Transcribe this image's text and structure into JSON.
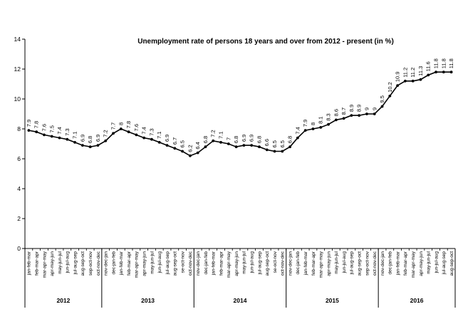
{
  "chart_data": {
    "type": "line",
    "title": "Unemployment rate of persons 18 years and over from 2012 - present (in %)",
    "xlabel": "",
    "ylabel": "",
    "ylim": [
      0,
      14
    ],
    "yticks": [
      0,
      2,
      4,
      6,
      8,
      10,
      12,
      14
    ],
    "grid": false,
    "legend": "none",
    "line_color": "#000000",
    "categories": [
      "jan-feb-mar",
      "feb-mar-apr",
      "mar-apr-may",
      "apr-may-jun",
      "may-jun-jul",
      "jun-jul-aug",
      "jul-aug-sep",
      "aug-sep-oct",
      "sep-oct-nov",
      "oct-nov-dec",
      "nov-dec-jan",
      "dec-jan-feb",
      "jan-feb-mar",
      "feb-mar-apr",
      "mar-apr-may",
      "apr-may-jun",
      "may-jun-jul",
      "jun-jul-aug",
      "jul-aug-sep",
      "aug-sep-oct",
      "se-oct-nov",
      "oct-nov-dec",
      "nov-dec-jan",
      "dec-jan-feb",
      "jan-feb-mar",
      "feb-mar-apr",
      "mar-apr-may",
      "apr-may-jun",
      "may-jun-jul",
      "jun-jul-aug",
      "jul-aug-sep",
      "aug-sep-oct",
      "se-oct-nov",
      "oct-nov-dec",
      "nov-dec-jan",
      "dec-jan-feb",
      "jan-feb-mar",
      "feb-mar-apr",
      "mar-apr-may",
      "apr-may-jun",
      "may-jun-jul",
      "jun-jul-aug",
      "jul-aug-sep",
      "aug-sep-oct",
      "sep-oct-nov",
      "oct-nov-dec",
      "nov-dec-jan",
      "dec-jan-feb",
      "jan-feb-mar",
      "feb-mar-apr",
      "mar-apr-may",
      "apr-may-jun",
      "may-jun-jul",
      "jun-jul-aug",
      "jul-aug-sep",
      "aug-sep-oct"
    ],
    "labels": [
      "7.9",
      "7.8",
      "7.6",
      "7.5",
      "7.4",
      "7.3",
      "7.1",
      "6.9",
      "6.8",
      "6.9",
      "7.2",
      "7.7",
      "8",
      "7.8",
      "7.6",
      "7.4",
      "7.3",
      "7.1",
      "6.9",
      "6.7",
      "6.5",
      "6.2",
      "6.4",
      "6.8",
      "7.2",
      "7.1",
      "7",
      "6.8",
      "6.9",
      "6.9",
      "6.8",
      "6.6",
      "6.5",
      "6.5",
      "6.8",
      "7.4",
      "7.9",
      "8",
      "8.1",
      "8.3",
      "8.6",
      "8.7",
      "8.9",
      "8.9",
      "9",
      "9",
      "9.5",
      "10.2",
      "10.9",
      "11.2",
      "11.2",
      "11.3",
      "11.6",
      "11.8",
      "11.8",
      "11.8"
    ],
    "years": [
      {
        "label": "2012",
        "start": 0,
        "end": 9
      },
      {
        "label": "2013",
        "start": 10,
        "end": 21
      },
      {
        "label": "2014",
        "start": 22,
        "end": 33
      },
      {
        "label": "2015",
        "start": 34,
        "end": 45
      },
      {
        "label": "2016",
        "start": 46,
        "end": 55
      }
    ]
  }
}
